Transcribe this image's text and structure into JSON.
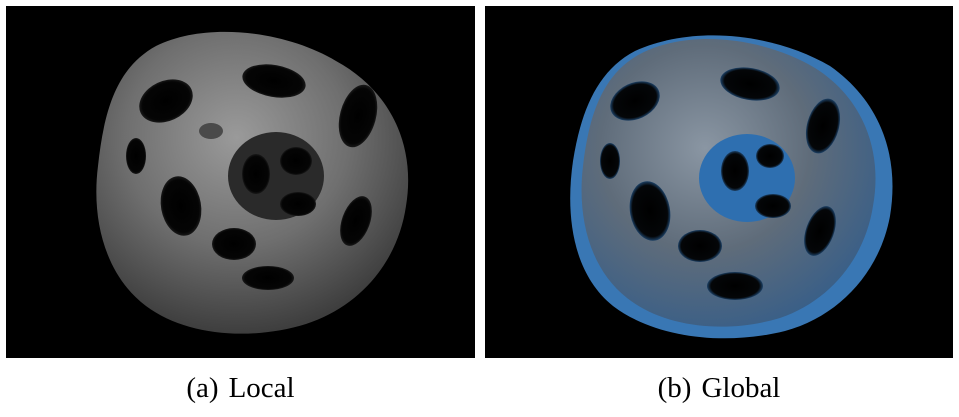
{
  "panels": [
    {
      "id": "a",
      "tag": "(a)",
      "label": "Local",
      "render_style": "gray-mesh",
      "colors": {
        "mesh": "#6e6e6e",
        "inner_highlight": "#8a8a8a",
        "background": "#000000"
      }
    },
    {
      "id": "b",
      "tag": "(b)",
      "label": "Global",
      "render_style": "gray-mesh-with-blue-overlay",
      "colors": {
        "mesh": "#5d6a78",
        "overlay": "#3f84c8",
        "background": "#000000"
      }
    }
  ]
}
